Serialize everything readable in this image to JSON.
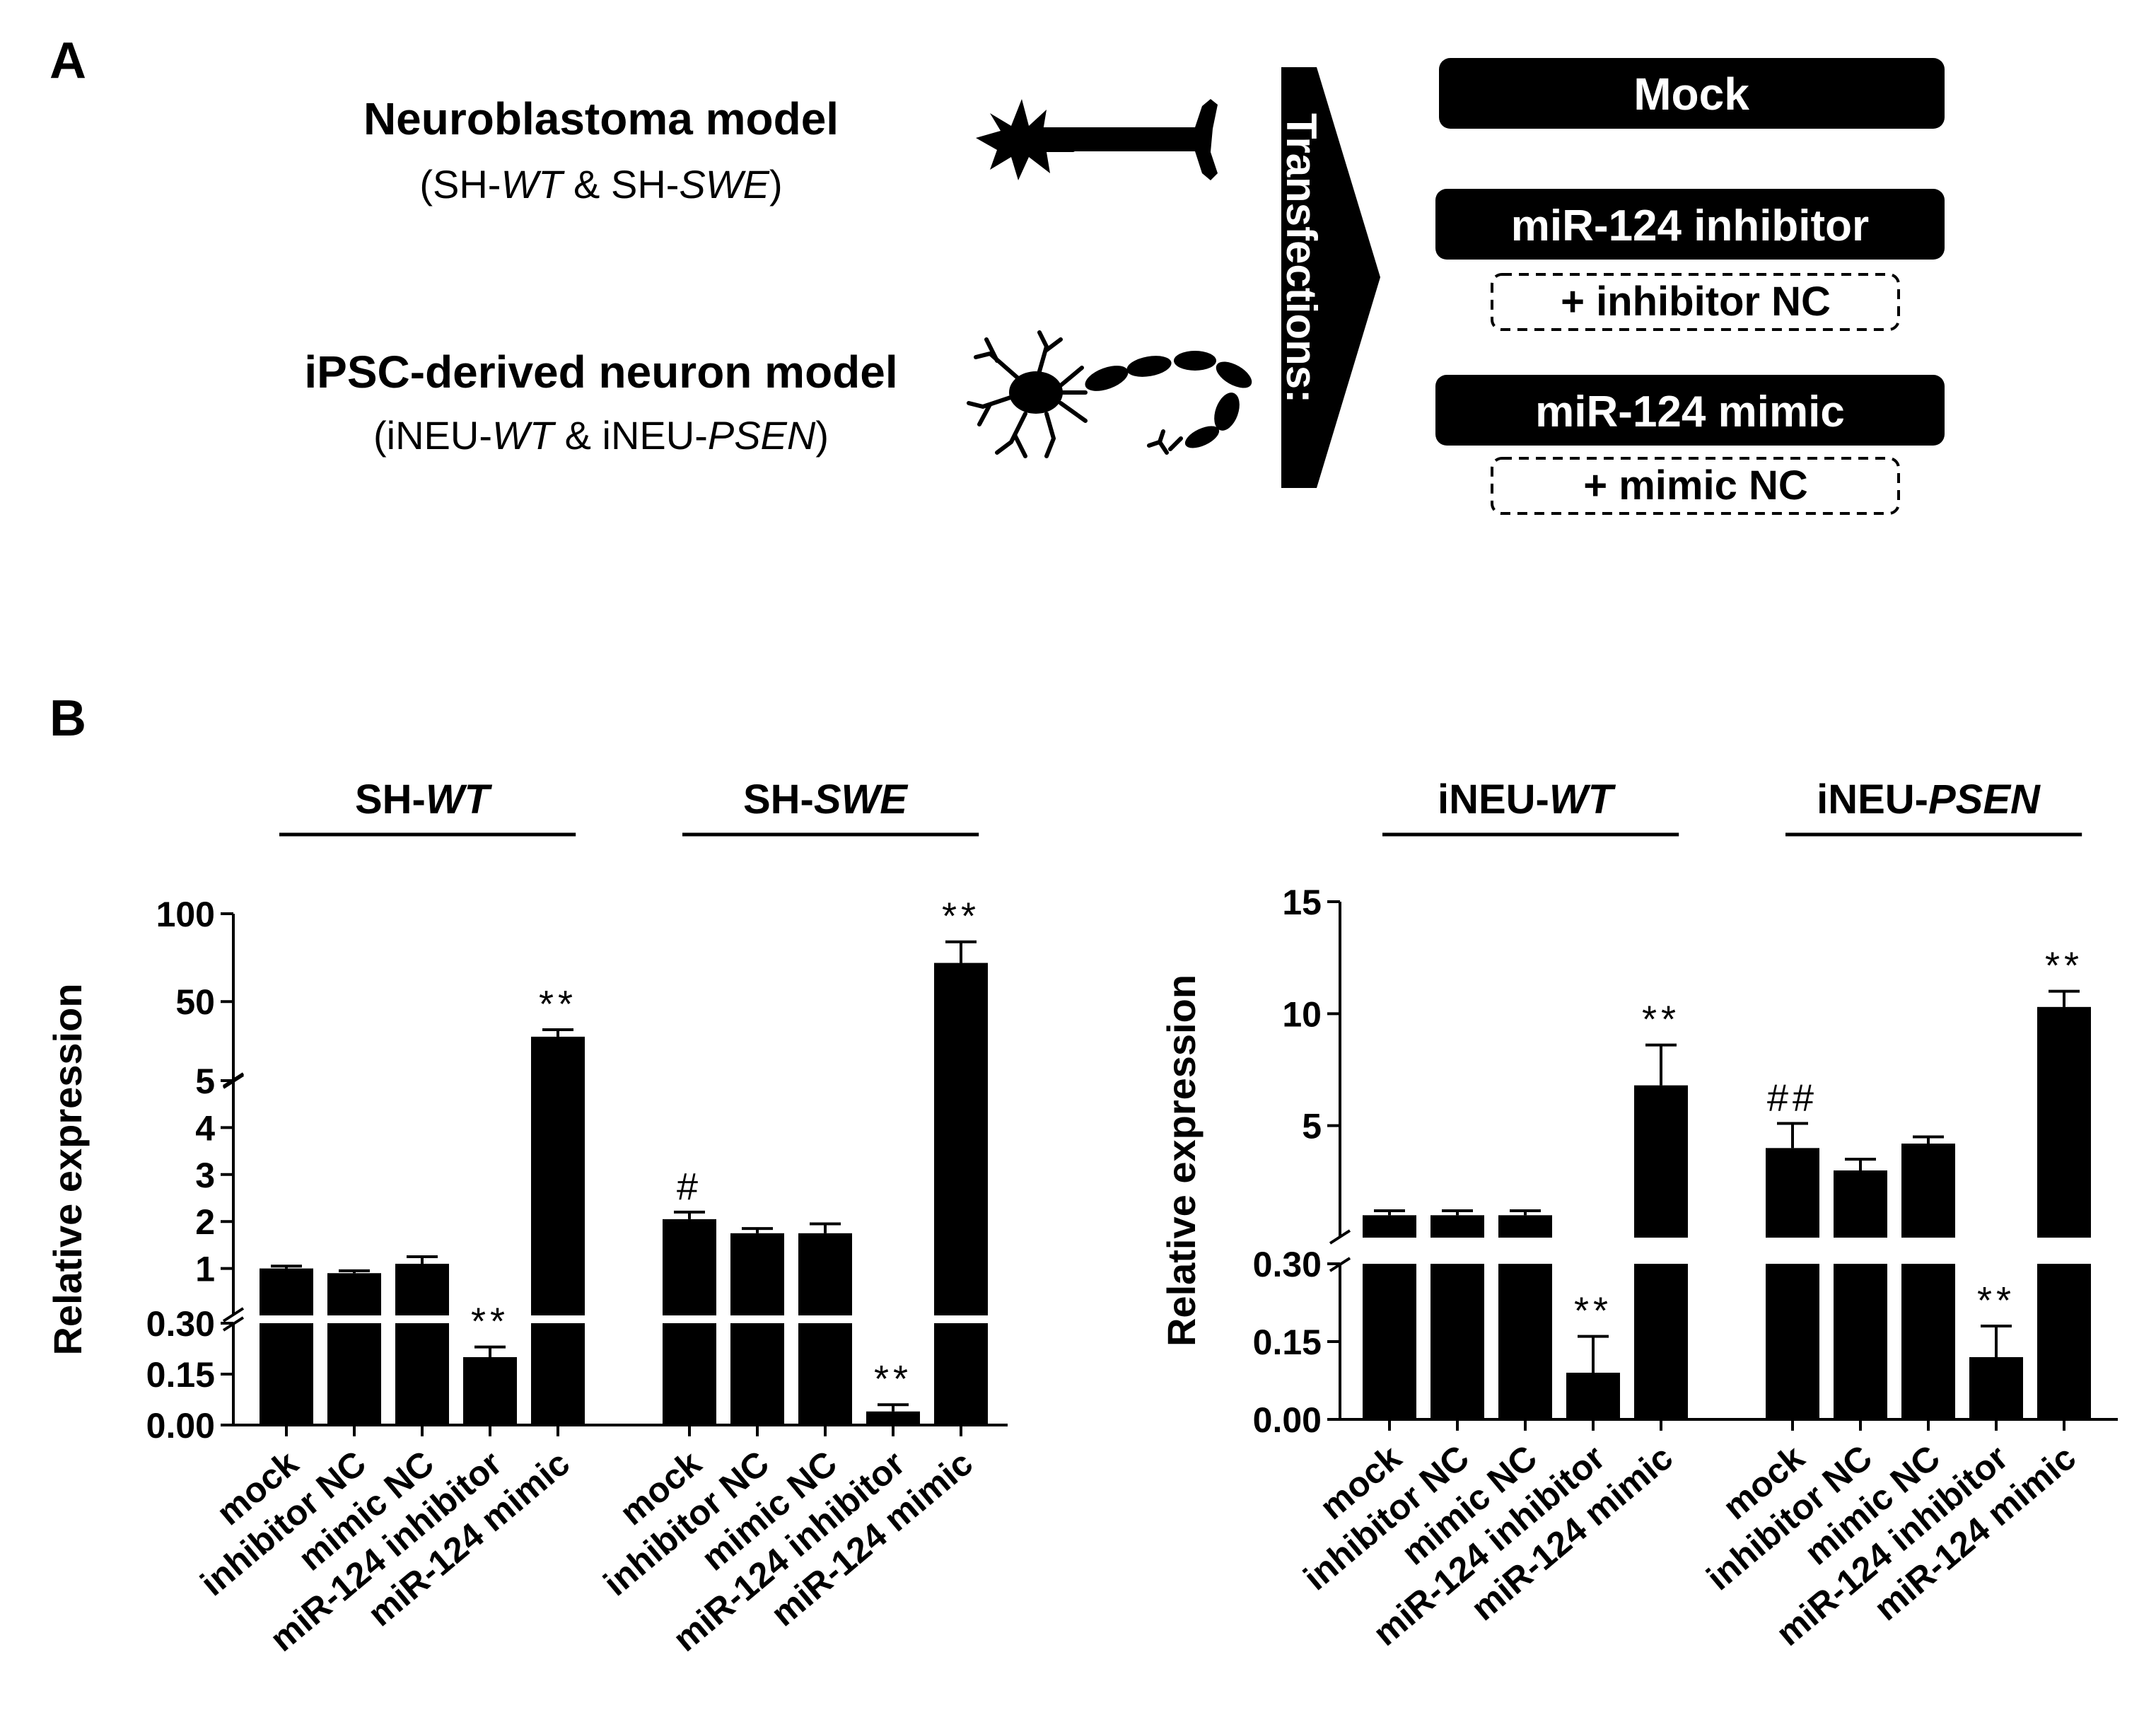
{
  "panel_a": {
    "letter": "A",
    "model1_title": "Neuroblastoma model",
    "model1_sub": [
      "(SH-",
      "WT",
      " & SH-",
      "SWE",
      ")"
    ],
    "model2_title": "iPSC-derived neuron model",
    "model2_sub": [
      "(iNEU-",
      "WT",
      " & iNEU-",
      "PSEN",
      ")"
    ],
    "transfections_label": "Transfections:",
    "boxes": {
      "mock": "Mock",
      "inhibitor": "miR-124 inhibitor",
      "inhibitor_nc": "+ inhibitor NC",
      "mimic": "miR-124 mimic",
      "mimic_nc": "+ mimic NC"
    }
  },
  "panel_b": {
    "letter": "B"
  },
  "colors": {
    "bar": "#000000",
    "background": "#ffffff"
  },
  "chart_data": [
    {
      "type": "bar",
      "ylabel": "Relative expression",
      "y_axis_segments": [
        {
          "range": [
            0,
            0.3
          ],
          "ticks": [
            "0.00",
            "0.15",
            "0.30"
          ]
        },
        {
          "range": [
            0,
            5
          ],
          "ticks": [
            "1",
            "2",
            "3",
            "4",
            "5"
          ]
        },
        {
          "range": [
            5,
            100
          ],
          "ticks": [
            "50",
            "100"
          ]
        }
      ],
      "categories": [
        "mock",
        "inhibitor NC",
        "mimic NC",
        "miR-124 inhibitor",
        "miR-124 mimic"
      ],
      "groups": [
        {
          "name_prefix": "SH-",
          "name_italic": "WT",
          "values": [
            1.0,
            0.9,
            1.1,
            0.2,
            30
          ],
          "errors": [
            0.05,
            0.05,
            0.15,
            0.03,
            4
          ],
          "annotations": [
            "",
            "",
            "",
            "**",
            "**"
          ]
        },
        {
          "name_prefix": "SH-",
          "name_italic": "SWE",
          "values": [
            2.05,
            1.75,
            1.75,
            0.04,
            72
          ],
          "errors": [
            0.15,
            0.1,
            0.2,
            0.02,
            12
          ],
          "annotations": [
            "#",
            "",
            "",
            "**",
            "**"
          ]
        }
      ]
    },
    {
      "type": "bar",
      "ylabel": "Relative expression",
      "y_axis_segments": [
        {
          "range": [
            0,
            0.3
          ],
          "ticks": [
            "0.00",
            "0.15",
            "0.30"
          ]
        },
        {
          "range": [
            0,
            15
          ],
          "ticks": [
            "5",
            "10",
            "15"
          ]
        }
      ],
      "categories": [
        "mock",
        "inhibitor NC",
        "mimic NC",
        "miR-124 inhibitor",
        "miR-124 mimic"
      ],
      "groups": [
        {
          "name_prefix": "iNEU-",
          "name_italic": "WT",
          "values": [
            1.0,
            1.0,
            1.0,
            0.09,
            6.8
          ],
          "errors": [
            0.2,
            0.2,
            0.2,
            0.07,
            1.8
          ],
          "annotations": [
            "",
            "",
            "",
            "**",
            "**"
          ]
        },
        {
          "name_prefix": "iNEU-",
          "name_italic": "PSEN",
          "values": [
            4.0,
            3.0,
            4.2,
            0.12,
            10.3
          ],
          "errors": [
            1.1,
            0.5,
            0.3,
            0.06,
            0.7
          ],
          "annotations": [
            "##",
            "",
            "",
            "**",
            "**"
          ]
        }
      ]
    }
  ]
}
